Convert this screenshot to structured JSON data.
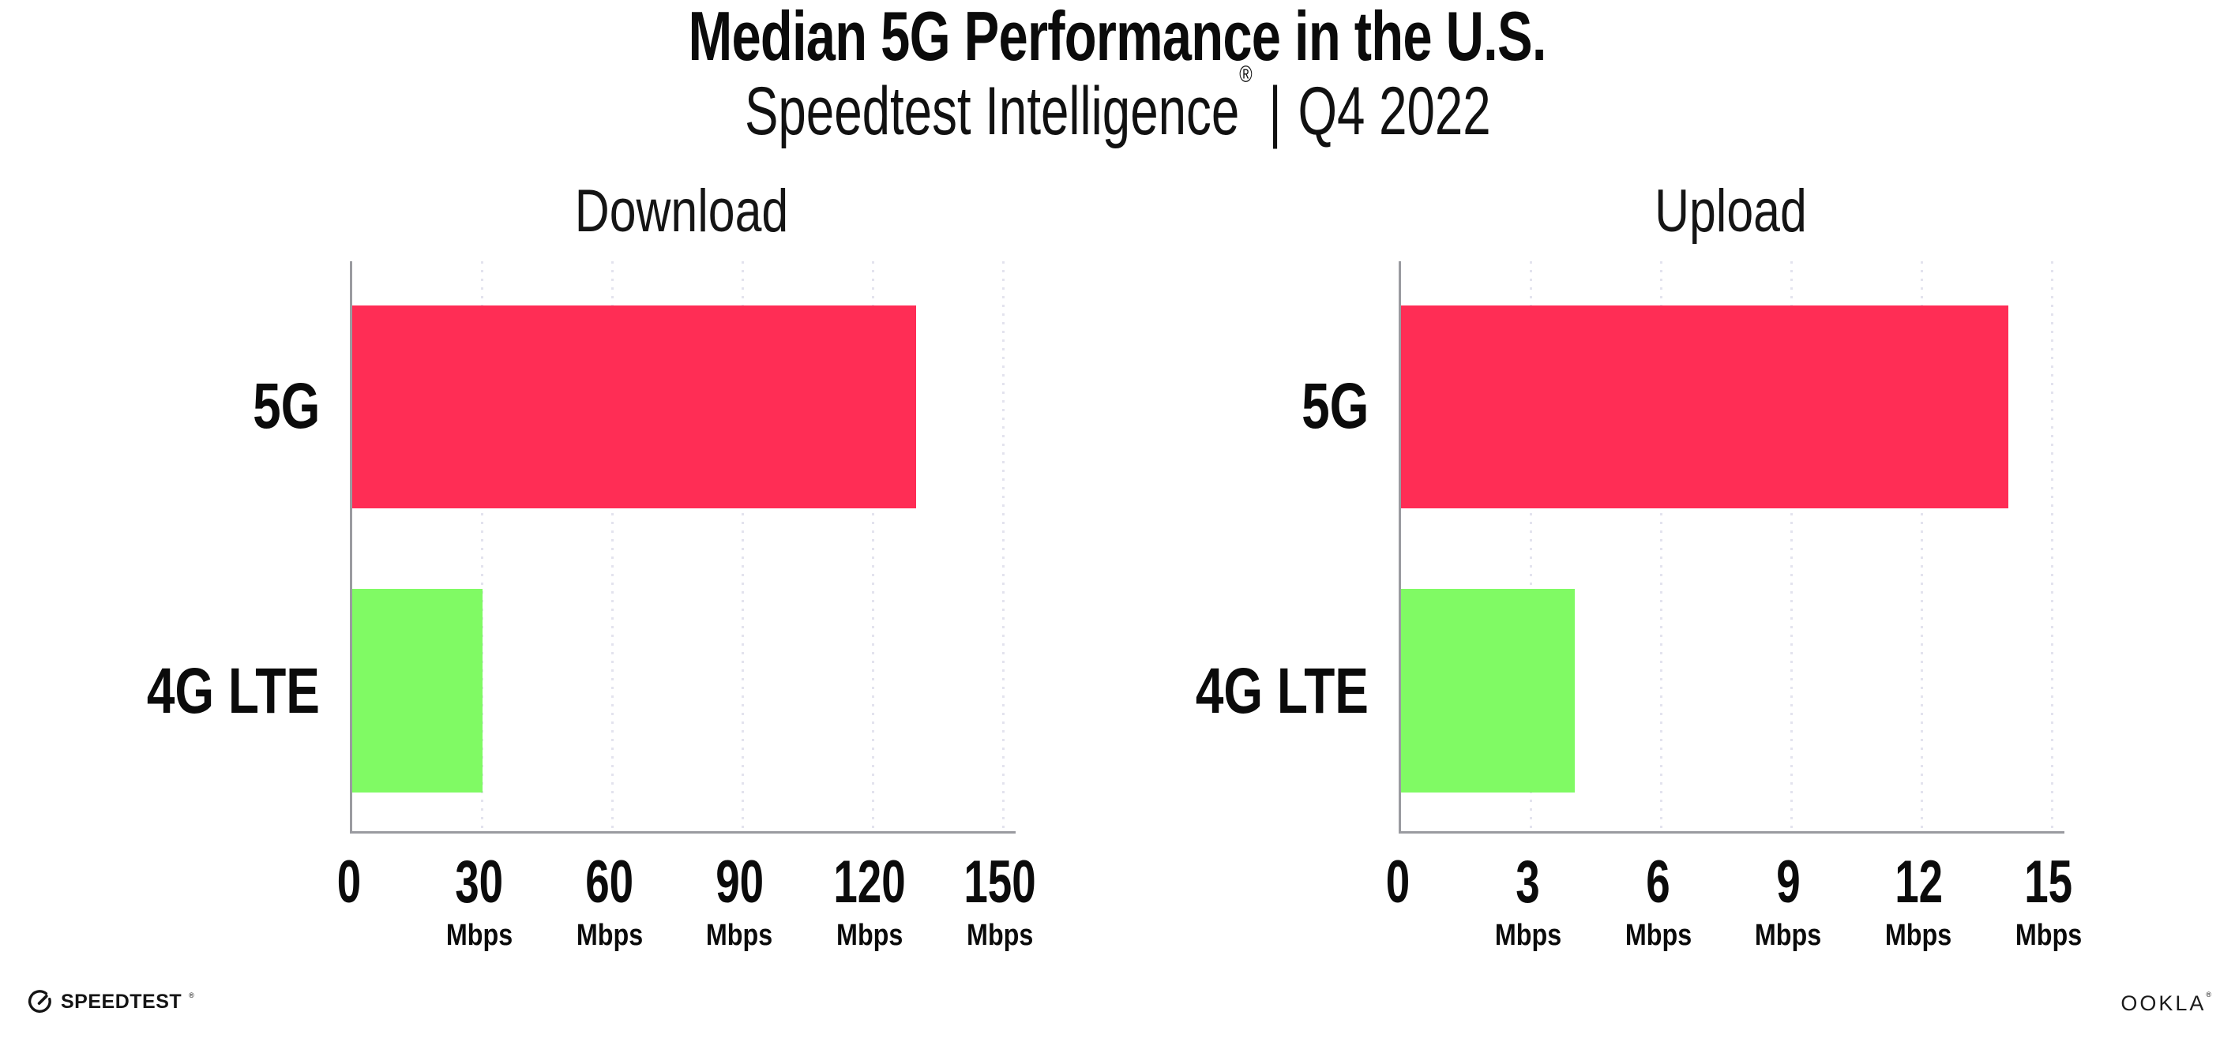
{
  "header": {
    "title": "Median 5G Performance in the U.S.",
    "subtitle_brand": "Speedtest Intelligence",
    "subtitle_reg": "®",
    "subtitle_divider": "|",
    "subtitle_period": "Q4 2022"
  },
  "colors": {
    "bar_5g": "#ff2d55",
    "bar_4g_lte": "#80fa64",
    "axis": "#9a9ba0",
    "gridline": "#e3e3ee",
    "text": "#0b0b0b"
  },
  "chart_data": [
    {
      "type": "bar",
      "orientation": "horizontal",
      "title": "Download",
      "categories": [
        "5G",
        "4G LTE"
      ],
      "values": [
        130,
        30
      ],
      "unit": "Mbps",
      "xlim": [
        0,
        150
      ],
      "xticks": [
        0,
        30,
        60,
        90,
        120,
        150
      ],
      "bar_colors": [
        "#ff2d55",
        "#80fa64"
      ],
      "grid": "dotted-vertical",
      "legend": false
    },
    {
      "type": "bar",
      "orientation": "horizontal",
      "title": "Upload",
      "categories": [
        "5G",
        "4G LTE"
      ],
      "values": [
        14,
        4
      ],
      "unit": "Mbps",
      "xlim": [
        0,
        15
      ],
      "xticks": [
        0,
        3,
        6,
        9,
        12,
        15
      ],
      "bar_colors": [
        "#ff2d55",
        "#80fa64"
      ],
      "grid": "dotted-vertical",
      "legend": false
    }
  ],
  "footer": {
    "speedtest_label": "SPEEDTEST",
    "speedtest_reg": "®",
    "speedtest_icon": "gauge-icon",
    "ookla_label": "OOKLA",
    "ookla_reg": "®"
  }
}
